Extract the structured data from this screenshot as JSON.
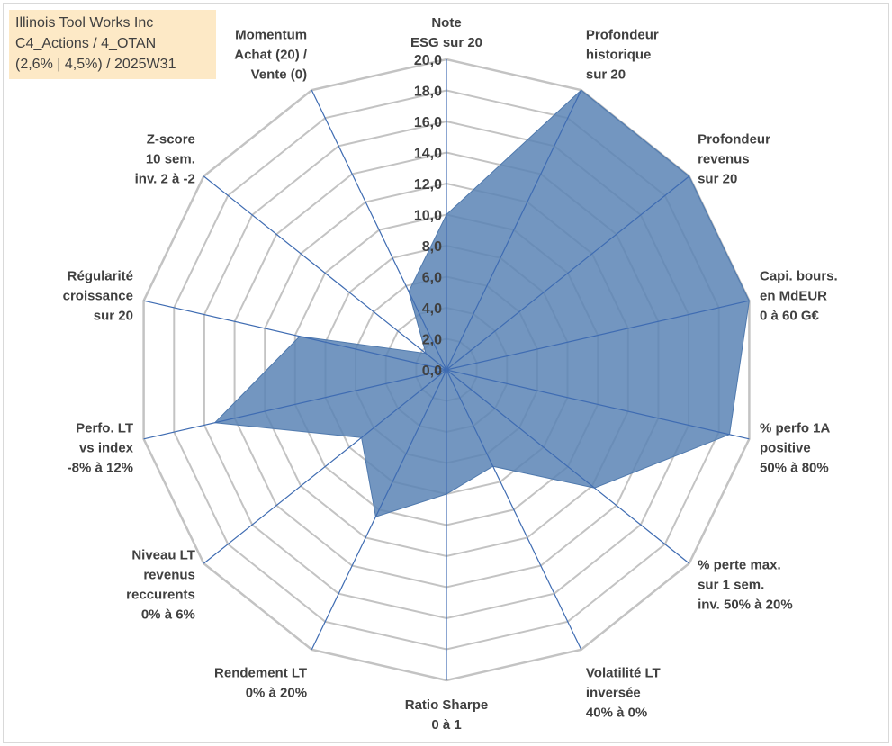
{
  "info_box": {
    "line1": "Illinois Tool Works Inc",
    "line2": "C4_Actions / 4_OTAN",
    "line3": "(2,6% | 4,5%) / 2025W31"
  },
  "chart_data": {
    "type": "radar",
    "r_range": [
      0,
      20
    ],
    "r_ticks": [
      "0,0",
      "2,0",
      "4,0",
      "6,0",
      "8,0",
      "10,0",
      "12,0",
      "14,0",
      "16,0",
      "18,0",
      "20,0"
    ],
    "grid": true,
    "axes": [
      {
        "label": [
          "Note",
          "ESG sur 20"
        ],
        "value": 10
      },
      {
        "label": [
          "Profondeur",
          "historique",
          "sur 20"
        ],
        "value": 20
      },
      {
        "label": [
          "Profondeur",
          "revenus",
          "sur 20"
        ],
        "value": 20
      },
      {
        "label": [
          "Capi. bours.",
          "en MdEUR",
          "0 à 60 G€"
        ],
        "value": 20
      },
      {
        "label": [
          "% perfo 1A",
          "positive",
          "50% à 80%"
        ],
        "value": 18.7
      },
      {
        "label": [
          "% perte max.",
          "sur 1 sem.",
          "inv. 50% à 20%"
        ],
        "value": 12.2
      },
      {
        "label": [
          "Volatilité LT",
          "inversée",
          "40% à 0%"
        ],
        "value": 6.9
      },
      {
        "label": [
          "Ratio Sharpe",
          "0 à 1"
        ],
        "value": 8.0
      },
      {
        "label": [
          "Rendement LT",
          "0% à 20%"
        ],
        "value": 10.5
      },
      {
        "label": [
          "Niveau LT",
          "revenus",
          "reccurents",
          "0% à 6%"
        ],
        "value": 7.0
      },
      {
        "label": [
          "Perfo. LT",
          "vs index",
          "-8% à 12%"
        ],
        "value": 15.3
      },
      {
        "label": [
          "Régularité",
          "croissance",
          "sur 20"
        ],
        "value": 9.7
      },
      {
        "label": [
          "Z-score",
          "10 sem.",
          "inv. 2 à -2"
        ],
        "value": 1.7
      },
      {
        "label": [
          "Momentum",
          "Achat (20) /",
          "Vente (0)"
        ],
        "value": 5.6
      }
    ],
    "colors": {
      "fill": "#5b84b5",
      "stroke": "#4f79ad",
      "grid": "#c3c3c3",
      "spoke": "#3f6cb2",
      "text": "#404040",
      "info_bg": "#fde9c6"
    }
  }
}
